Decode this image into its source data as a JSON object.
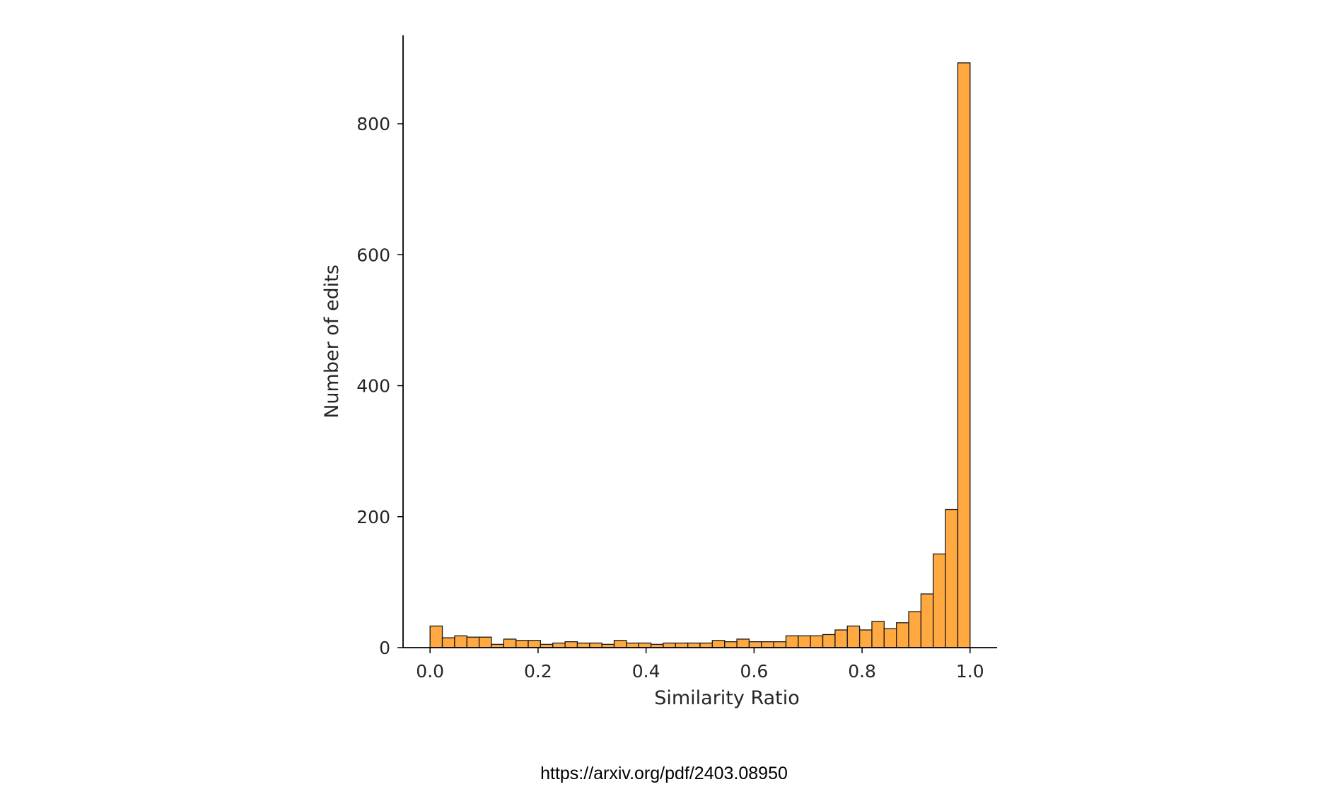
{
  "source_url": "https://arxiv.org/pdf/2403.08950",
  "colors": {
    "bar_fill": "#ffa940",
    "bar_edge": "#1a1a1a",
    "axis": "#000000",
    "text": "#262626"
  },
  "chart_data": {
    "type": "bar",
    "title": "",
    "xlabel": "Similarity Ratio",
    "ylabel": "Number of edits",
    "xlim": [
      -0.05,
      1.05
    ],
    "ylim": [
      0,
      935
    ],
    "x_ticks": [
      0.0,
      0.2,
      0.4,
      0.6,
      0.8,
      1.0
    ],
    "x_tick_labels": [
      "0.0",
      "0.2",
      "0.4",
      "0.6",
      "0.8",
      "1.0"
    ],
    "y_ticks": [
      0,
      200,
      400,
      600,
      800
    ],
    "y_tick_labels": [
      "0",
      "200",
      "400",
      "600",
      "800"
    ],
    "bin_width": 0.02273,
    "bin_starts": [
      0.0,
      0.0227,
      0.0455,
      0.0682,
      0.0909,
      0.1136,
      0.1364,
      0.1591,
      0.1818,
      0.2045,
      0.2273,
      0.25,
      0.2727,
      0.2955,
      0.3182,
      0.3409,
      0.3636,
      0.3864,
      0.4091,
      0.4318,
      0.4545,
      0.4773,
      0.5,
      0.5227,
      0.5455,
      0.5682,
      0.5909,
      0.6136,
      0.6364,
      0.6591,
      0.6818,
      0.7045,
      0.7273,
      0.75,
      0.7727,
      0.7955,
      0.8182,
      0.8409,
      0.8636,
      0.8864,
      0.9091,
      0.9318,
      0.9545,
      0.9773
    ],
    "values": [
      33,
      15,
      18,
      16,
      16,
      5,
      13,
      11,
      11,
      5,
      7,
      9,
      7,
      7,
      5,
      11,
      7,
      7,
      5,
      7,
      7,
      7,
      7,
      11,
      9,
      13,
      9,
      9,
      9,
      18,
      18,
      18,
      20,
      27,
      33,
      27,
      40,
      29,
      38,
      55,
      82,
      143,
      211,
      893
    ]
  }
}
